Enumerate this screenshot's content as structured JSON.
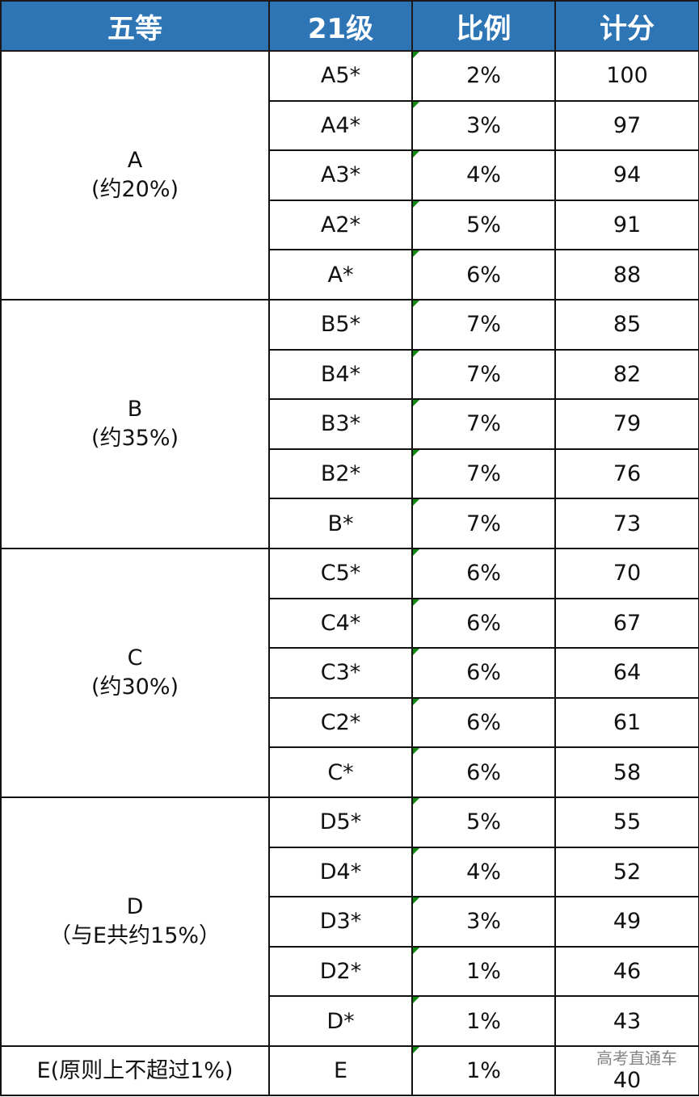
{
  "headers": [
    "五等",
    "21级",
    "比例",
    "计分"
  ],
  "groups": [
    {
      "label": "A",
      "note": "(约20%)",
      "rows": [
        [
          "A5*",
          "2%",
          "100"
        ],
        [
          "A4*",
          "3%",
          "97"
        ],
        [
          "A3*",
          "4%",
          "94"
        ],
        [
          "A2*",
          "5%",
          "91"
        ],
        [
          "A*",
          "6%",
          "88"
        ]
      ]
    },
    {
      "label": "B",
      "note": "(约35%)",
      "rows": [
        [
          "B5*",
          "7%",
          "85"
        ],
        [
          "B4*",
          "7%",
          "82"
        ],
        [
          "B3*",
          "7%",
          "79"
        ],
        [
          "B2*",
          "7%",
          "76"
        ],
        [
          "B*",
          "7%",
          "73"
        ]
      ]
    },
    {
      "label": "C",
      "note": "(约30%)",
      "rows": [
        [
          "C5*",
          "6%",
          "70"
        ],
        [
          "C4*",
          "6%",
          "67"
        ],
        [
          "C3*",
          "6%",
          "64"
        ],
        [
          "C2*",
          "6%",
          "61"
        ],
        [
          "C*",
          "6%",
          "58"
        ]
      ]
    },
    {
      "label": "D",
      "note": "（与E共约15%）",
      "rows": [
        [
          "D5*",
          "5%",
          "55"
        ],
        [
          "D4*",
          "4%",
          "52"
        ],
        [
          "D3*",
          "3%",
          "49"
        ],
        [
          "D2*",
          "1%",
          "46"
        ],
        [
          "D*",
          "1%",
          "43"
        ]
      ]
    },
    {
      "label": "E(原则上不超过1%)",
      "note": "",
      "rows": [
        [
          "E",
          "1%",
          "40"
        ]
      ]
    }
  ],
  "watermark": "高考直通车",
  "colors": {
    "header_bg": "#2e75b6",
    "header_text": "#ffffff",
    "cell_marker": "#118a11"
  }
}
